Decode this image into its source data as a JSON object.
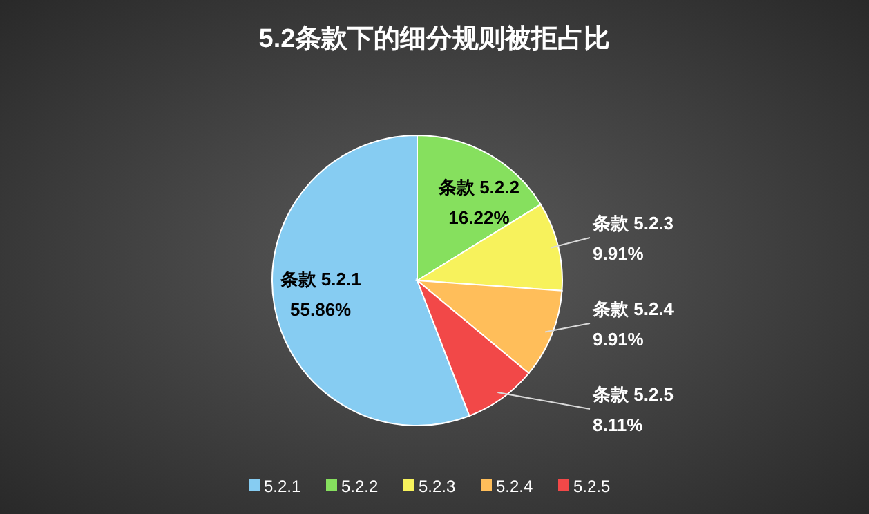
{
  "chart_data": {
    "type": "pie",
    "title": "5.2条款下的细分规则被拒占比",
    "categories": [
      "5.2.1",
      "5.2.2",
      "5.2.3",
      "5.2.4",
      "5.2.5"
    ],
    "values": [
      55.86,
      16.22,
      9.91,
      9.91,
      8.11
    ],
    "colors": [
      "#86ccf2",
      "#86e05e",
      "#f7f25c",
      "#ffbe5a",
      "#f24848"
    ],
    "value_labels": [
      "条款 5.2.1\n55.86%",
      "条款 5.2.2\n16.22%",
      "条款 5.2.3\n9.91%",
      "条款 5.2.4\n9.91%",
      "条款 5.2.5\n8.11%"
    ],
    "legend": "bottom"
  }
}
